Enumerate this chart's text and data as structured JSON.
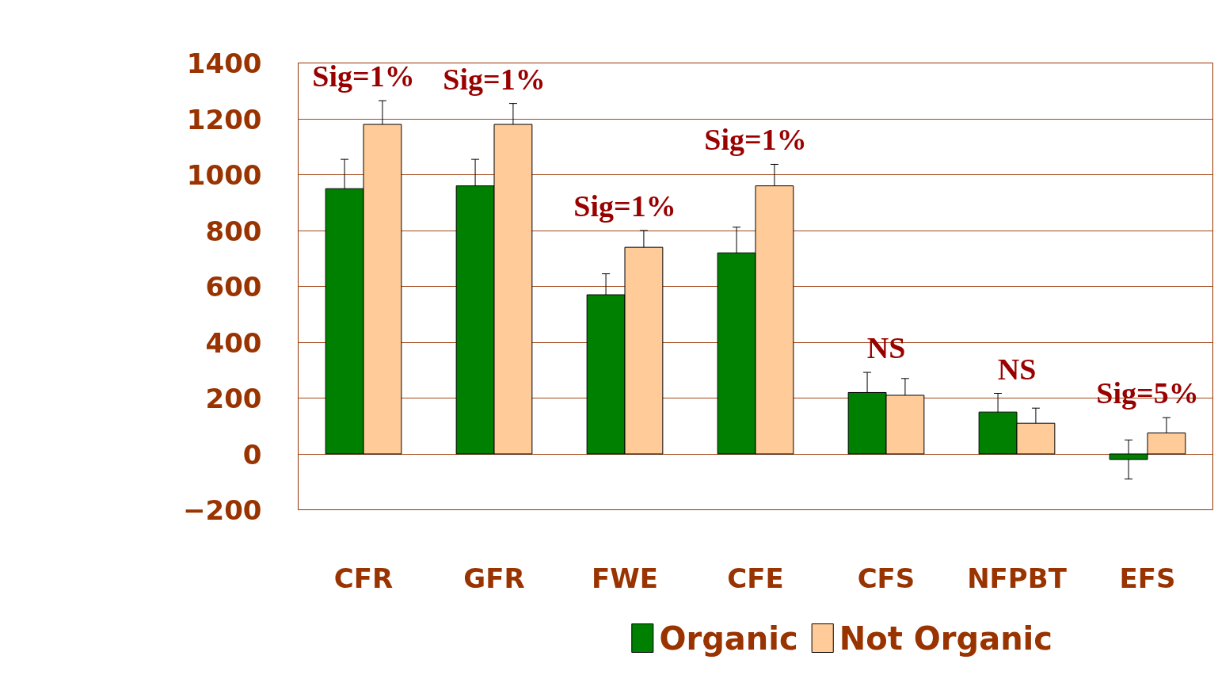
{
  "chart_data": {
    "type": "bar",
    "categories": [
      "CFR",
      "GFR",
      "FWE",
      "CFE",
      "CFS",
      "NFPBT",
      "EFS"
    ],
    "series": [
      {
        "name": "Organic",
        "color": "#008000",
        "values": [
          950,
          960,
          570,
          720,
          220,
          150,
          -20
        ],
        "errors": [
          105,
          95,
          75,
          92,
          72,
          67,
          70
        ]
      },
      {
        "name": "Not Organic",
        "color": "#ffcc99",
        "values": [
          1180,
          1180,
          740,
          960,
          210,
          110,
          75
        ],
        "errors": [
          85,
          75,
          60,
          77,
          60,
          54,
          55
        ]
      }
    ],
    "ylim": [
      -200,
      1400
    ],
    "yticks": [
      -200,
      0,
      200,
      400,
      600,
      800,
      1000,
      1200,
      1400
    ],
    "grid": "y",
    "legend": "bottom",
    "annotations": [
      "Sig=1%",
      "Sig=1%",
      "Sig=1%",
      "Sig=1%",
      "NS",
      "NS",
      "Sig=5%"
    ]
  }
}
